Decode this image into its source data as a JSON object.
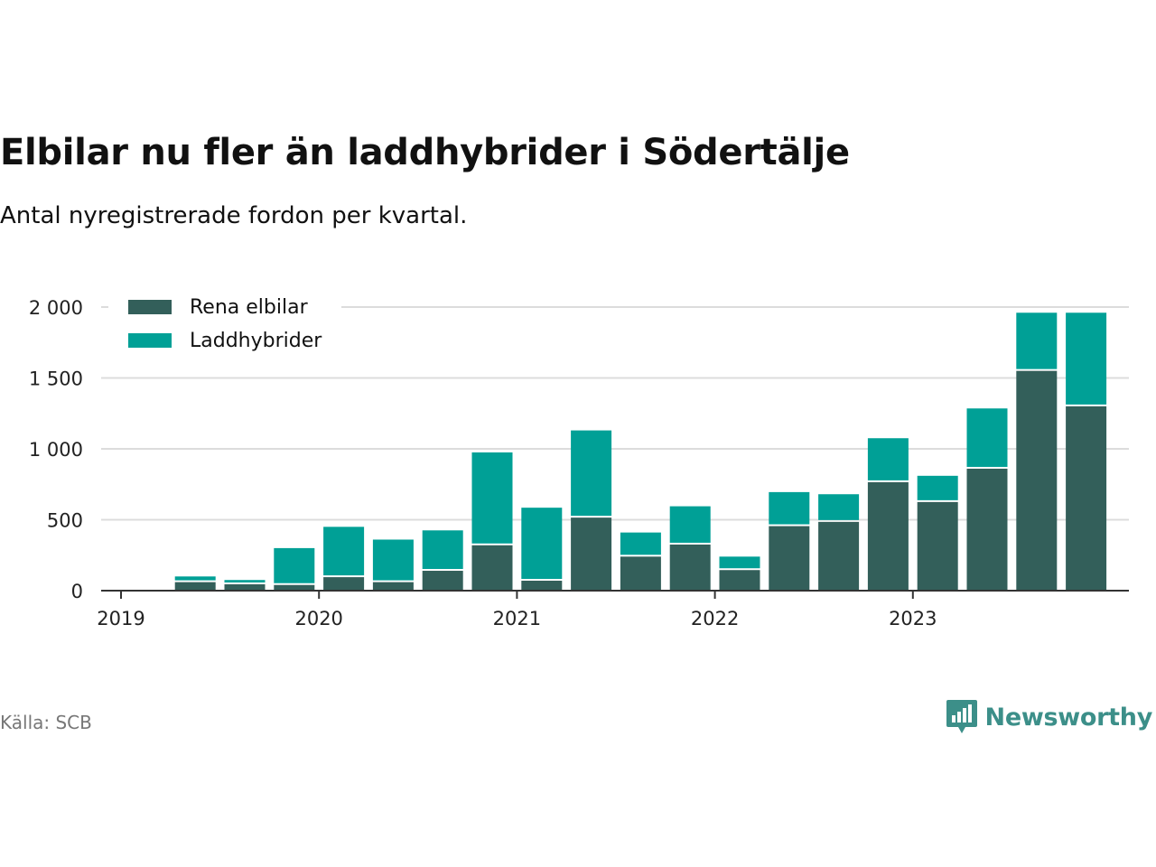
{
  "title": "Elbilar nu fler än laddhybrider i Södertälje",
  "subtitle": "Antal nyregistrerade fordon per kvartal.",
  "source": "Källa: SCB",
  "brand": "Newsworthy",
  "colors": {
    "series1": "#335f5a",
    "series2": "#00a096",
    "grid": "#dcdcdc",
    "axis": "#333333",
    "brand": "#3c8f89"
  },
  "chart_data": {
    "type": "bar",
    "stacked": true,
    "title": "Elbilar nu fler än laddhybrider i Södertälje",
    "subtitle": "Antal nyregistrerade fordon per kvartal.",
    "x_ticks": [
      "2019",
      "2020",
      "2021",
      "2022",
      "2023"
    ],
    "y_ticks": [
      0,
      500,
      1000,
      1500,
      2000
    ],
    "y_tick_labels": [
      "0",
      "500",
      "1 000",
      "1 500",
      "2 000"
    ],
    "ylim": [
      0,
      2000
    ],
    "categories": [
      "2019 Q1",
      "2019 Q2",
      "2019 Q3",
      "2019 Q4",
      "2020 Q1",
      "2020 Q2",
      "2020 Q3",
      "2020 Q4",
      "2021 Q1",
      "2021 Q2",
      "2021 Q3",
      "2021 Q4",
      "2022 Q1",
      "2022 Q2",
      "2022 Q3",
      "2022 Q4",
      "2023 Q1",
      "2023 Q2",
      "2023 Q3",
      "2023 Q4"
    ],
    "series": [
      {
        "name": "Rena elbilar",
        "values": [
          5,
          60,
          45,
          40,
          95,
          60,
          140,
          320,
          70,
          515,
          240,
          325,
          145,
          455,
          485,
          765,
          625,
          860,
          1550,
          1300
        ]
      },
      {
        "name": "Laddhybrider",
        "values": [
          0,
          40,
          30,
          260,
          355,
          300,
          285,
          655,
          515,
          615,
          170,
          270,
          95,
          240,
          195,
          310,
          185,
          425,
          410,
          660
        ]
      }
    ],
    "legend": "top-left"
  }
}
